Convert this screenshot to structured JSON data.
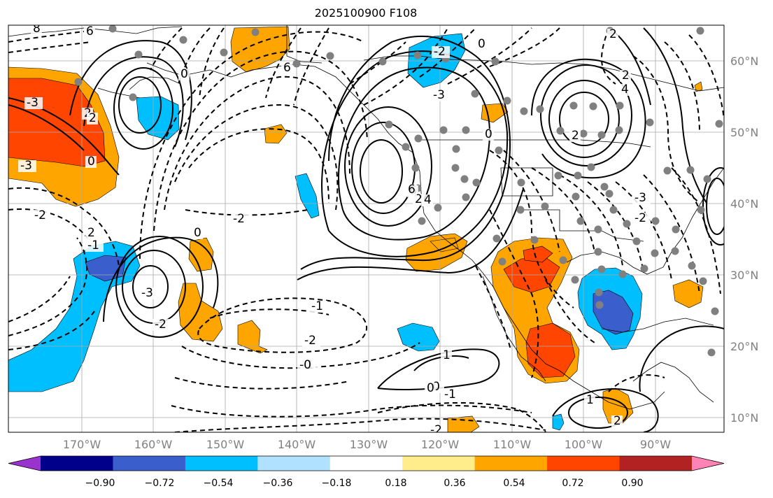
{
  "title": "2025100900 F108",
  "lat_labels": [
    "60°N",
    "50°N",
    "40°N",
    "30°N",
    "20°N",
    "10°N"
  ],
  "lon_labels": [
    "170°W",
    "160°W",
    "150°W",
    "140°W",
    "130°W",
    "120°W",
    "110°W",
    "100°W",
    "90°W"
  ],
  "colorbar": {
    "ticks": [
      "−0.90",
      "−0.72",
      "−0.54",
      "−0.36",
      "−0.18",
      "0.18",
      "0.36",
      "0.54",
      "0.72",
      "0.90"
    ],
    "colors": [
      "#9a32cd",
      "#00008b",
      "#3a5fcd",
      "#00bfff",
      "#b0e2ff",
      "#ffffff",
      "#ffec8b",
      "#ffa500",
      "#ff4500",
      "#b22222",
      "#ff83b4"
    ]
  },
  "contour_labels": [
    "8",
    "6",
    "6",
    "2",
    "0",
    "4",
    "2",
    "-2",
    "0",
    "6",
    "2",
    "-3",
    "-3",
    "2",
    "0",
    "2",
    "6",
    "4",
    "0",
    "-1",
    "0",
    "-2",
    "-2",
    "-1",
    "-2",
    "-0",
    "-3",
    "-1",
    "1",
    "0",
    "-1",
    "-2",
    "-0",
    "1",
    "2",
    "-2",
    "2",
    "-3",
    "-2",
    "2",
    "-3"
  ],
  "station_count": 80
}
